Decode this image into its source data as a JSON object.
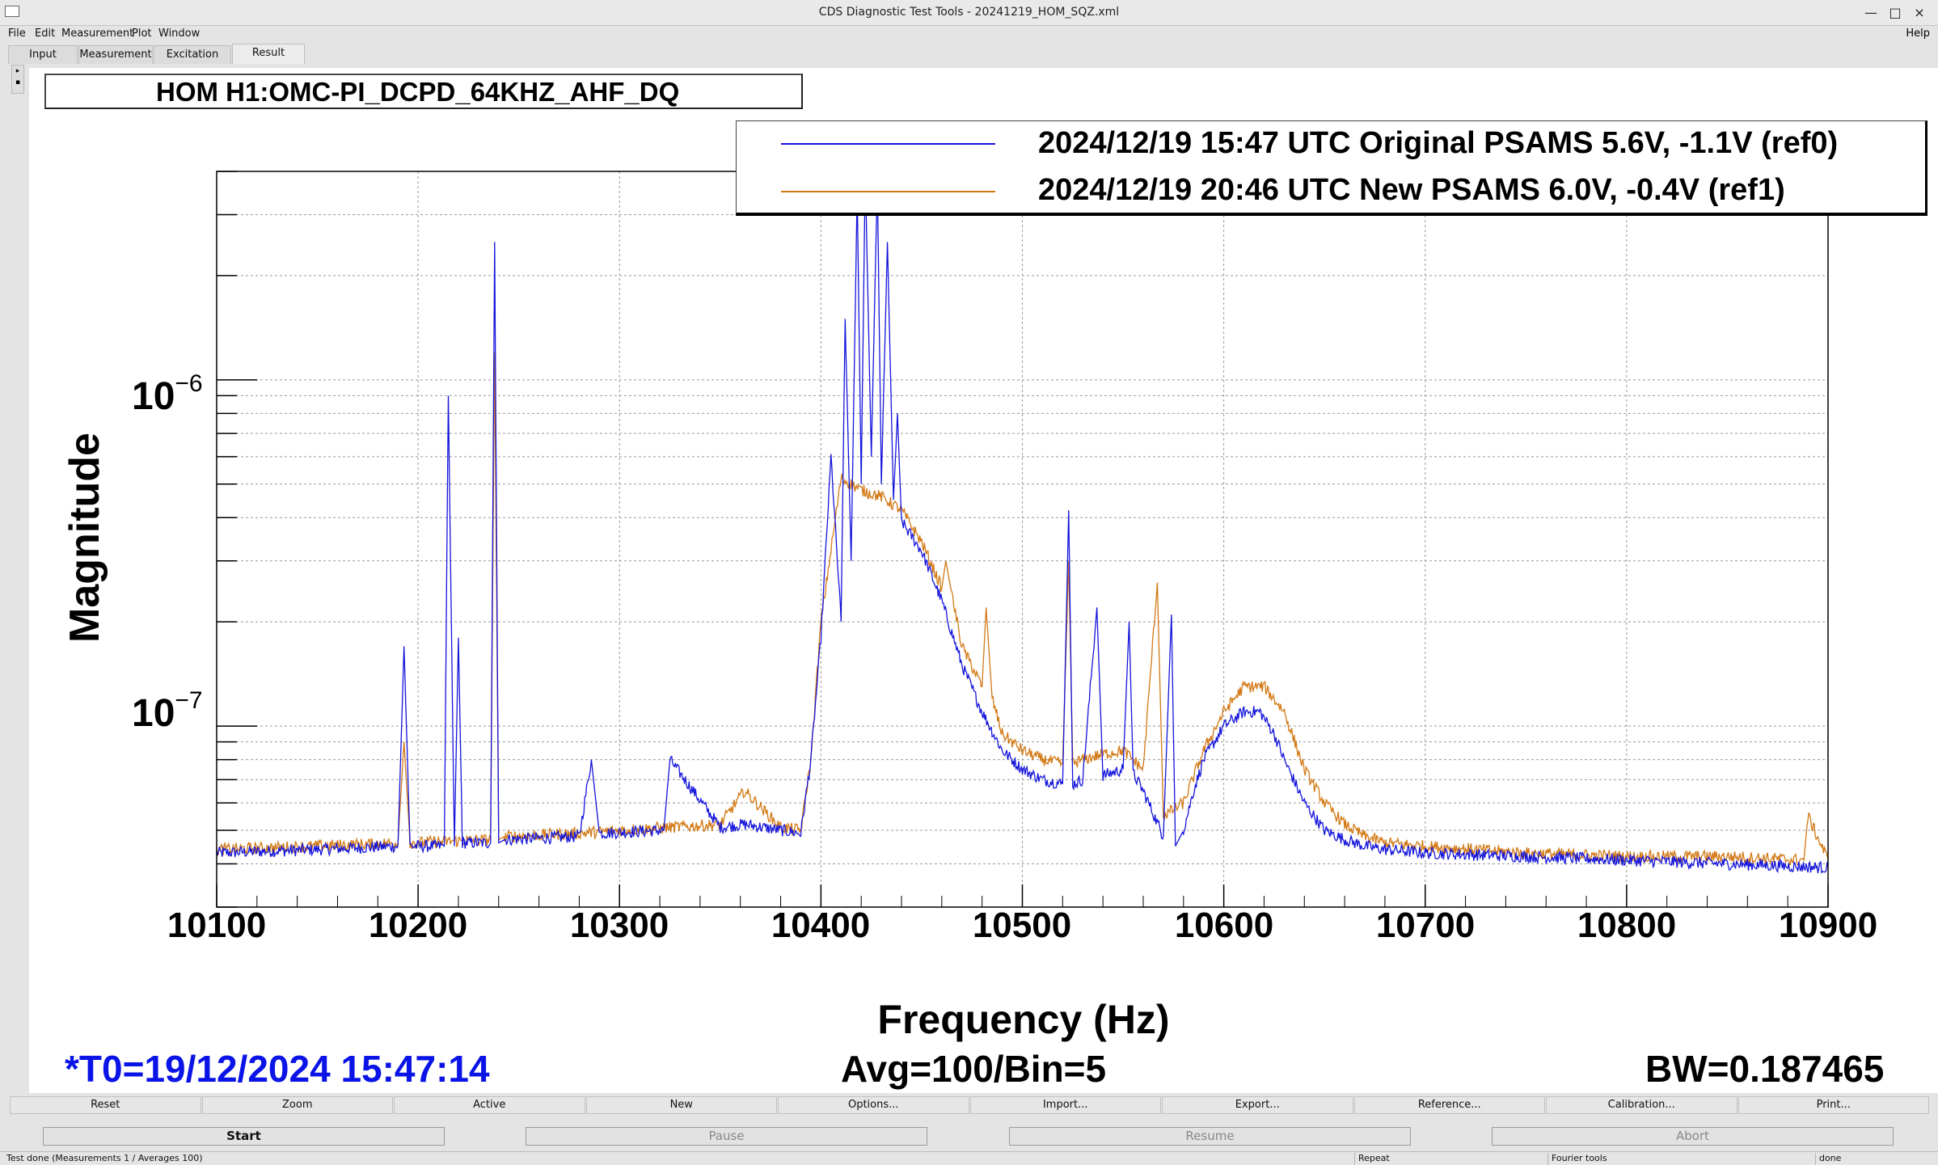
{
  "window": {
    "title": "CDS Diagnostic Test Tools - 20241219_HOM_SQZ.xml",
    "controls": [
      "—",
      "□",
      "×"
    ]
  },
  "menu": {
    "items": [
      "File",
      "Edit",
      "Measurement",
      "Plot",
      "Window"
    ],
    "help": "Help"
  },
  "tabs": [
    "Input",
    "Measurement",
    "Excitation",
    "Result"
  ],
  "active_tab": "Result",
  "plot": {
    "title": "HOM H1:OMC-PI_DCPD_64KHZ_AHF_DQ",
    "t0": "*T0=19/12/2024 15:47:14",
    "avg": "Avg=100/Bin=5",
    "bw": "BW=0.187465",
    "ytick_exp": [
      "−6",
      "−7"
    ]
  },
  "buttons_row1": [
    "Reset",
    "Zoom",
    "Active",
    "New",
    "Options...",
    "Import...",
    "Export...",
    "Reference...",
    "Calibration...",
    "Print..."
  ],
  "buttons_row2": [
    "Start",
    "Pause",
    "Resume",
    "Abort"
  ],
  "status": {
    "message": "Test done (Measurements 1 / Averages 100)",
    "repeat": "Repeat",
    "fourier": "Fourier tools",
    "state": "done"
  },
  "chart_data": {
    "type": "line",
    "title": "HOM H1:OMC-PI_DCPD_64KHZ_AHF_DQ",
    "xlabel": "Frequency (Hz)",
    "ylabel": "Magnitude",
    "xlim": [
      10100,
      10900
    ],
    "ylim": [
      3e-08,
      4e-06
    ],
    "yscale": "log",
    "grid": true,
    "legend_position": "top-right",
    "xticks": [
      10100,
      10200,
      10300,
      10400,
      10500,
      10600,
      10700,
      10800,
      10900
    ],
    "yticks": [
      "10^-6",
      "10^-7"
    ],
    "colors": {
      "ref0": "#1414dc",
      "ref1": "#d27814"
    },
    "series": [
      {
        "name": "2024/12/19 15:47 UTC Original PSAMS  5.6V, -1.1V (ref0)",
        "x": [
          10100,
          10150,
          10190,
          10193,
          10196,
          10213,
          10215,
          10218,
          10220,
          10222,
          10236,
          10238,
          10240,
          10243,
          10280,
          10286,
          10290,
          10322,
          10325,
          10350,
          10362,
          10380,
          10390,
          10395,
          10400,
          10405,
          10410,
          10412,
          10415,
          10418,
          10420,
          10422,
          10425,
          10428,
          10430,
          10433,
          10436,
          10438,
          10440,
          10450,
          10460,
          10470,
          10480,
          10490,
          10500,
          10510,
          10520,
          10523,
          10525,
          10530,
          10537,
          10540,
          10550,
          10553,
          10555,
          10560,
          10570,
          10574,
          10576,
          10580,
          10585,
          10590,
          10600,
          10610,
          10618,
          10625,
          10630,
          10640,
          10650,
          10660,
          10670,
          10680,
          10700,
          10750,
          10800,
          10850,
          10900
        ],
        "y": [
          4.3e-08,
          4.4e-08,
          4.5e-08,
          1.7e-07,
          4.5e-08,
          4.5e-08,
          9e-07,
          4.5e-08,
          1.8e-07,
          4.6e-08,
          4.6e-08,
          2.5e-06,
          4.6e-08,
          4.7e-08,
          4.8e-08,
          8e-08,
          4.9e-08,
          5e-08,
          8e-08,
          5.1e-08,
          5.2e-08,
          5e-08,
          4.9e-08,
          8e-08,
          1.8e-07,
          6e-07,
          2e-07,
          1.5e-06,
          3e-07,
          3.5e-06,
          5e-07,
          4e-06,
          6e-07,
          3.8e-06,
          5e-07,
          2.5e-06,
          4.5e-07,
          8e-07,
          3.9e-07,
          3.2e-07,
          2.3e-07,
          1.5e-07,
          1.1e-07,
          8.5e-08,
          7.5e-08,
          7e-08,
          6.8e-08,
          4.2e-07,
          6.8e-08,
          7e-08,
          2.2e-07,
          7.2e-08,
          7.5e-08,
          2e-07,
          7.3e-08,
          6.5e-08,
          4.8e-08,
          2.1e-07,
          4.5e-08,
          5e-08,
          6.5e-08,
          8e-08,
          1e-07,
          1.1e-07,
          1.1e-07,
          9.5e-08,
          8e-08,
          6e-08,
          5e-08,
          4.7e-08,
          4.5e-08,
          4.4e-08,
          4.3e-08,
          4.2e-08,
          4.1e-08,
          4e-08,
          3.9e-08
        ]
      },
      {
        "name": "2024/12/19 20:46 UTC New PSAMS 6.0V, -0.4V (ref1)",
        "x": [
          10100,
          10150,
          10190,
          10193,
          10196,
          10236,
          10238,
          10240,
          10243,
          10280,
          10300,
          10350,
          10362,
          10380,
          10390,
          10395,
          10400,
          10410,
          10420,
          10430,
          10440,
          10450,
          10460,
          10462,
          10465,
          10470,
          10480,
          10482,
          10485,
          10490,
          10500,
          10510,
          10520,
          10523,
          10525,
          10530,
          10540,
          10550,
          10560,
          10567,
          10570,
          10580,
          10590,
          10600,
          10610,
          10620,
          10630,
          10640,
          10650,
          10660,
          10670,
          10680,
          10700,
          10750,
          10800,
          10850,
          10888,
          10890,
          10900
        ],
        "y": [
          4.4e-08,
          4.5e-08,
          4.6e-08,
          9e-08,
          4.6e-08,
          4.7e-08,
          1.2e-06,
          4.7e-08,
          4.8e-08,
          4.9e-08,
          5e-08,
          5.2e-08,
          6.5e-08,
          5.1e-08,
          5e-08,
          8e-08,
          2e-07,
          5.2e-07,
          4.8e-07,
          4.6e-07,
          4.2e-07,
          3.4e-07,
          2.5e-07,
          3e-07,
          2.4e-07,
          1.7e-07,
          1.3e-07,
          2.2e-07,
          1.2e-07,
          9.5e-08,
          8.5e-08,
          8e-08,
          7.8e-08,
          3e-07,
          7.8e-08,
          8e-08,
          8.3e-08,
          8.5e-08,
          7.5e-08,
          2.6e-07,
          5.5e-08,
          6e-08,
          8.5e-08,
          1.1e-07,
          1.3e-07,
          1.3e-07,
          1.1e-07,
          7.5e-08,
          6e-08,
          5.2e-08,
          4.8e-08,
          4.6e-08,
          4.5e-08,
          4.3e-08,
          4.2e-08,
          4.2e-08,
          4.1e-08,
          5.5e-08,
          4.1e-08
        ]
      }
    ]
  }
}
